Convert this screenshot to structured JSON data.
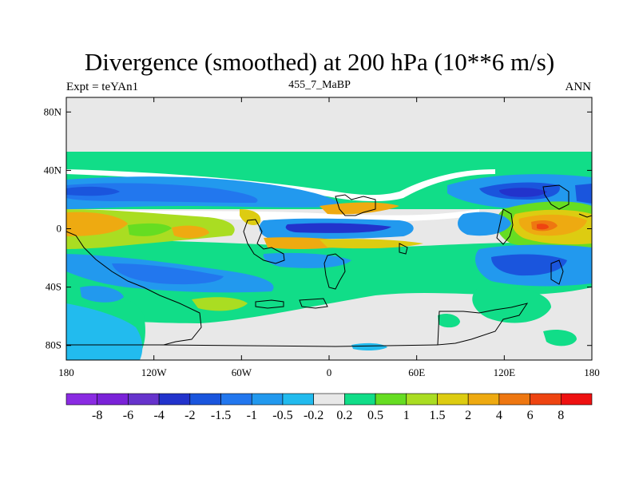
{
  "title": "Divergence (smoothed) at 200 hPa (10**6 m/s)",
  "subtitle_left": "Expt = teYAn1",
  "subtitle_center": "455_7_MaBP",
  "subtitle_right": "ANN",
  "colors": {
    "background_map": "#e8e8e8",
    "frame": "#000000"
  },
  "map_data": {
    "type": "filled-contour",
    "projection": "cylindrical-equidistant",
    "lon_range": [
      -180,
      180
    ],
    "lat_range": [
      -90,
      90
    ],
    "x_ticks": [
      {
        "value": -180,
        "label": "180"
      },
      {
        "value": -120,
        "label": "120W"
      },
      {
        "value": -60,
        "label": "60W"
      },
      {
        "value": 0,
        "label": "0"
      },
      {
        "value": 60,
        "label": "60E"
      },
      {
        "value": 120,
        "label": "120E"
      },
      {
        "value": 180,
        "label": "180"
      }
    ],
    "y_ticks": [
      {
        "value": 80,
        "label": "80N"
      },
      {
        "value": 40,
        "label": "40N"
      },
      {
        "value": 0,
        "label": "0"
      },
      {
        "value": -40,
        "label": "40S"
      },
      {
        "value": -80,
        "label": "80S"
      }
    ]
  },
  "colorbar": {
    "colors": [
      "#8a2be2",
      "#7a22d8",
      "#6633cc",
      "#2233cc",
      "#1a55dd",
      "#2277ee",
      "#2299ee",
      "#22bbee",
      "#e8e8e8",
      "#11dd88",
      "#66dd22",
      "#aadd22",
      "#ddcc11",
      "#eeaa11",
      "#ee7711",
      "#ee4411",
      "#ee1111"
    ],
    "labels": [
      "-8",
      "-6",
      "-4",
      "-2",
      "-1.5",
      "-1",
      "-0.5",
      "-0.2",
      "0.2",
      "0.5",
      "1",
      "1.5",
      "2",
      "4",
      "6",
      "8"
    ]
  }
}
